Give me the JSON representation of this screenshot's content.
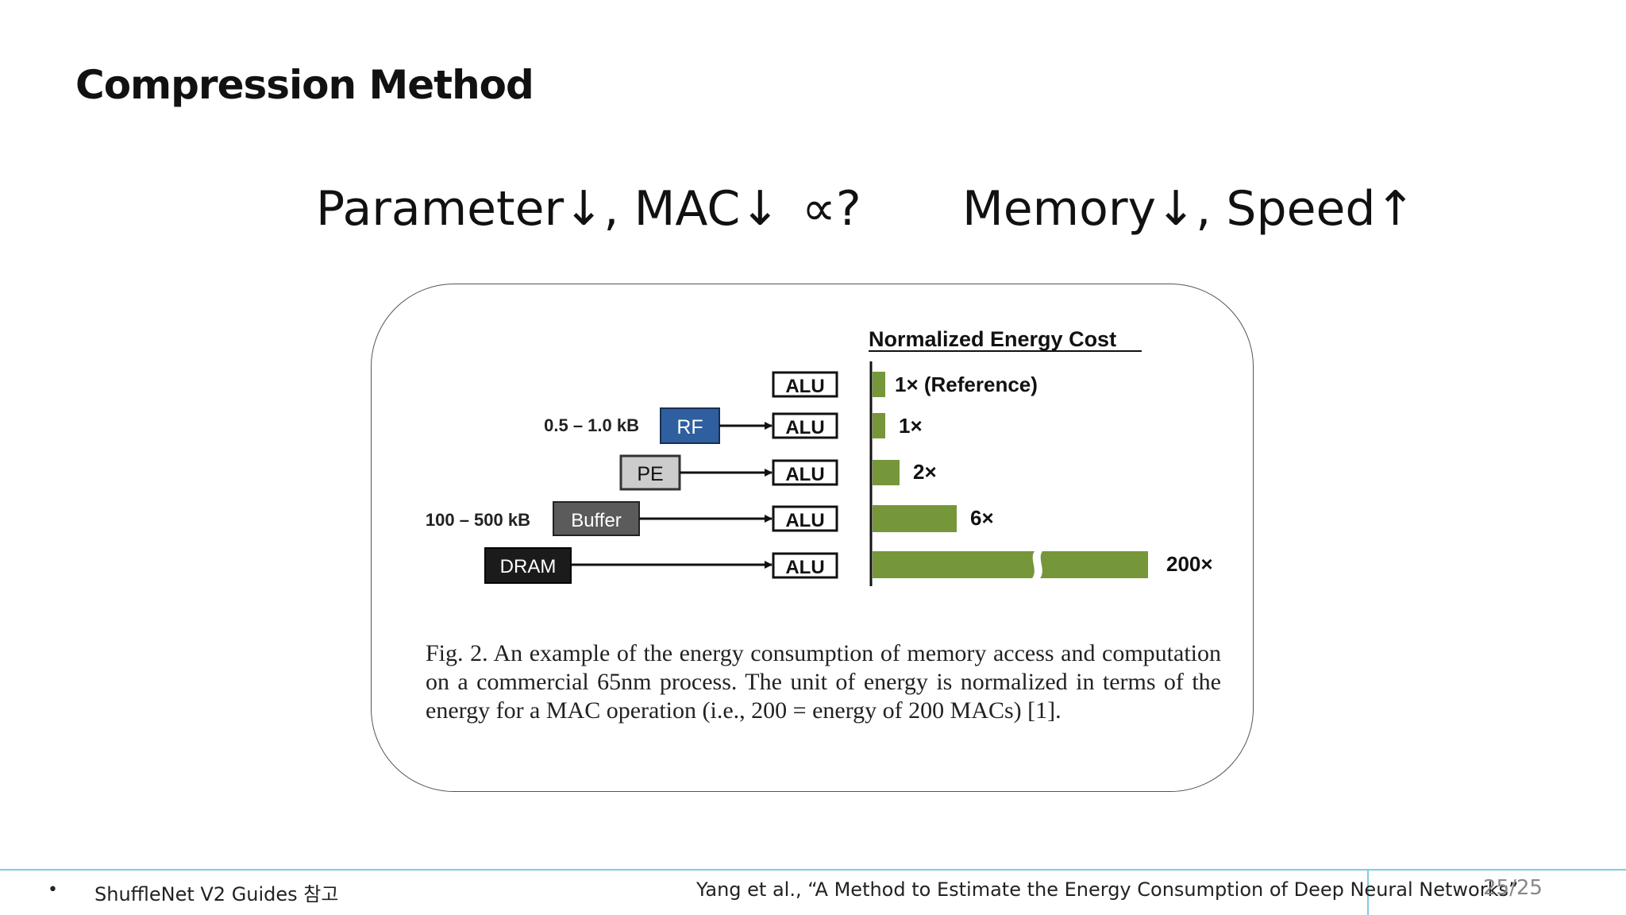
{
  "slide": {
    "title": "Compression Method",
    "equation": {
      "left": "Parameter↓, MAC↓",
      "middle": "∝?",
      "right": "Memory↓, Speed↑"
    }
  },
  "figure": {
    "heading": "Normalized Energy Cost",
    "alu_label": "ALU",
    "rows": [
      {
        "store": "",
        "size": "",
        "value_label": "1× (Reference)",
        "relative_cost": 1
      },
      {
        "store": "RF",
        "size": "0.5 – 1.0 kB",
        "value_label": "1×",
        "relative_cost": 1
      },
      {
        "store": "PE",
        "size": "",
        "value_label": "2×",
        "relative_cost": 2
      },
      {
        "store": "Buffer",
        "size": "100 – 500 kB",
        "value_label": "6×",
        "relative_cost": 6
      },
      {
        "store": "DRAM",
        "size": "",
        "value_label": "200×",
        "relative_cost": 200
      }
    ],
    "colors": {
      "bar": "#76963a",
      "rf": "#2f5f9e",
      "pe": "#cccccc",
      "buffer": "#5b5b5b",
      "dram": "#1b1b1b"
    },
    "caption": "Fig. 2.  An example of the energy consumption of memory access and computation on a commercial 65nm process. The unit of energy is normalized in terms of the energy for a MAC operation (i.e., 200 = energy of 200 MACs) [1]."
  },
  "footer": {
    "bullet": "•",
    "note": "ShuffleNet V2 Guides 참고",
    "reference": "Yang et al., “A Method to Estimate the Energy Consumption of Deep Neural Networks”",
    "page": "25/25"
  }
}
